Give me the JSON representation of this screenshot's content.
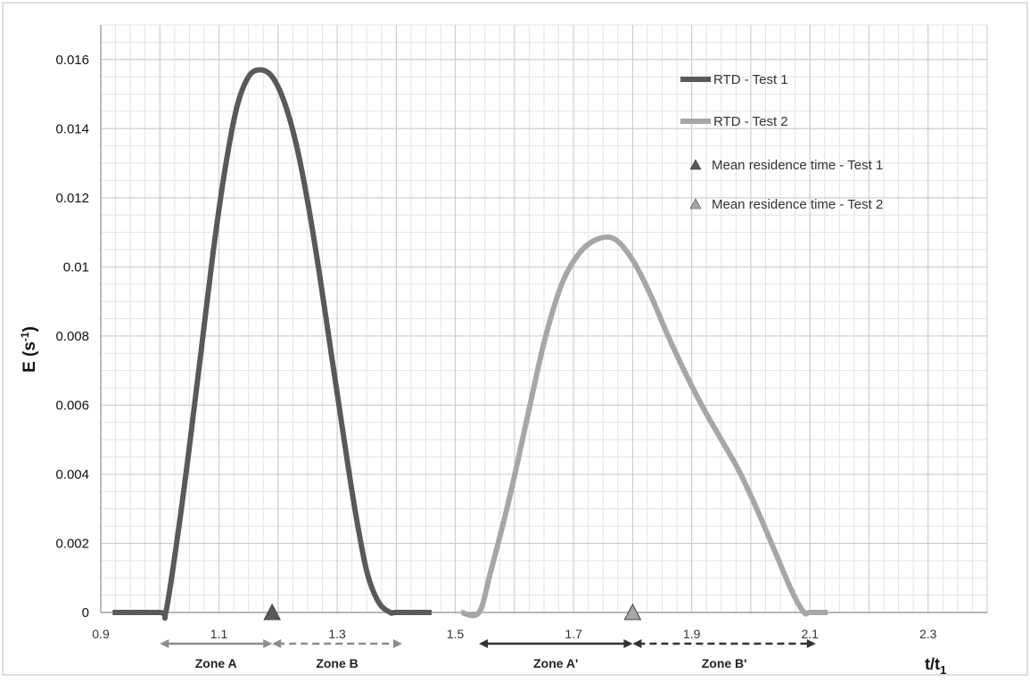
{
  "chart_data": {
    "type": "line",
    "xlabel": "t/t",
    "xlabel_sub": "1",
    "ylabel": "E (s",
    "ylabel_sup": "-1",
    "ylabel_close": ")",
    "xlim": [
      0.9,
      2.4
    ],
    "ylim": [
      0,
      0.017
    ],
    "x_ticks": [
      0.9,
      1.1,
      1.3,
      1.5,
      1.7,
      1.9,
      2.1,
      2.3
    ],
    "x_tick_labels": [
      "0.9",
      "1.1",
      "1.3",
      "1.5",
      "1.7",
      "1.9",
      "2.1",
      "2.3"
    ],
    "y_ticks": [
      0,
      0.002,
      0.004,
      0.006,
      0.008,
      0.01,
      0.012,
      0.014,
      0.016
    ],
    "y_tick_labels": [
      "0",
      "0.002",
      "0.004",
      "0.006",
      "0.008",
      "0.01",
      "0.012",
      "0.014",
      "0.016"
    ],
    "grid": true,
    "legend_position": "top-right",
    "series": [
      {
        "name": "RTD - Test 1",
        "color": "#595959",
        "x": [
          0.92,
          1.0,
          1.01,
          1.03,
          1.05,
          1.07,
          1.09,
          1.11,
          1.13,
          1.15,
          1.17,
          1.19,
          1.21,
          1.23,
          1.25,
          1.27,
          1.29,
          1.31,
          1.33,
          1.35,
          1.37,
          1.39,
          1.4,
          1.46
        ],
        "y": [
          0,
          0,
          0,
          0.0022,
          0.0048,
          0.0076,
          0.0104,
          0.0128,
          0.0146,
          0.0155,
          0.0157,
          0.0155,
          0.0148,
          0.0136,
          0.0119,
          0.0098,
          0.0075,
          0.0052,
          0.003,
          0.0012,
          0.0003,
          0,
          0,
          0
        ]
      },
      {
        "name": "RTD - Test 2",
        "color": "#a6a6a6",
        "x": [
          1.51,
          1.54,
          1.56,
          1.59,
          1.62,
          1.65,
          1.68,
          1.71,
          1.74,
          1.77,
          1.8,
          1.83,
          1.86,
          1.89,
          1.92,
          1.95,
          1.98,
          2.01,
          2.04,
          2.07,
          2.09,
          2.1,
          2.13
        ],
        "y": [
          0,
          0,
          0.0012,
          0.0032,
          0.0055,
          0.0078,
          0.0095,
          0.0104,
          0.0108,
          0.0108,
          0.0102,
          0.0092,
          0.008,
          0.0069,
          0.0059,
          0.005,
          0.0041,
          0.003,
          0.0018,
          0.0006,
          0,
          0,
          0
        ]
      }
    ],
    "markers": [
      {
        "name": "Mean residence time - Test 1",
        "x": 1.19,
        "y": 0,
        "color": "#595959"
      },
      {
        "name": "Mean residence time - Test 2",
        "x": 1.8,
        "y": 0,
        "color": "#a6a6a6"
      }
    ],
    "zones": [
      {
        "label": "Zone A",
        "x0": 1.0,
        "x1": 1.19,
        "style": "solid",
        "color": "#8c8c8c",
        "row": 1
      },
      {
        "label": "Zone B",
        "x0": 1.19,
        "x1": 1.41,
        "style": "dashed",
        "color": "#8c8c8c",
        "row": 1
      },
      {
        "label": "Zone A'",
        "x0": 1.54,
        "x1": 1.8,
        "style": "solid",
        "color": "#333333",
        "row": 2
      },
      {
        "label": "Zone B'",
        "x0": 1.8,
        "x1": 2.11,
        "style": "dashed",
        "color": "#333333",
        "row": 2
      }
    ]
  }
}
